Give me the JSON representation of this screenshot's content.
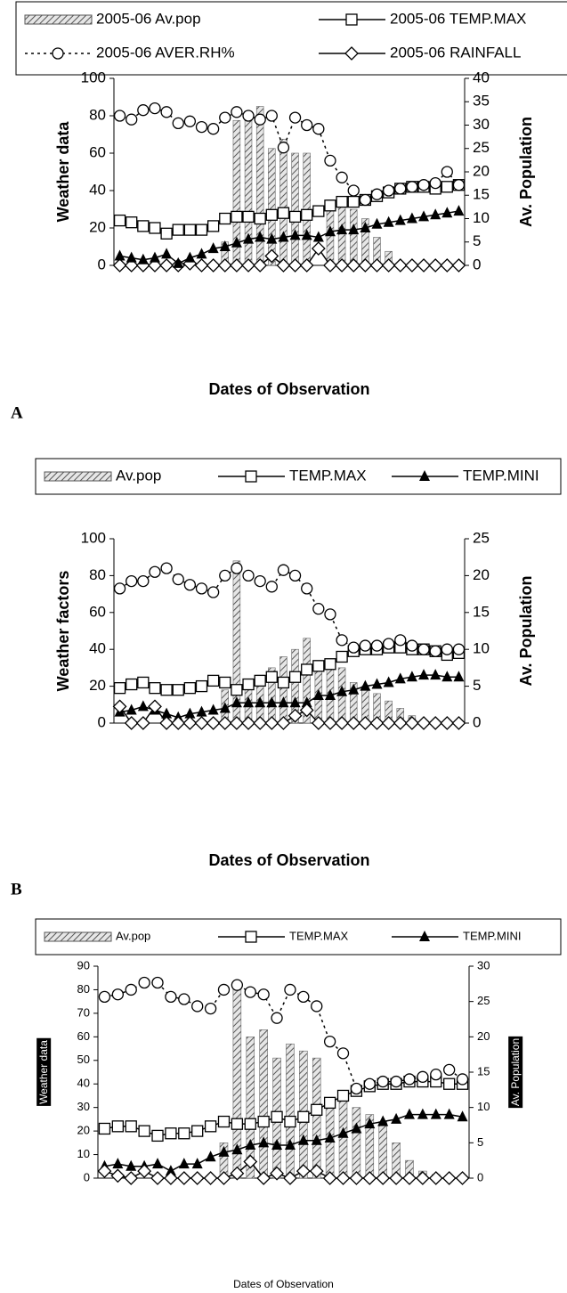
{
  "chart_data": [
    {
      "type": "combo",
      "panel_label": "A",
      "y_title": "Weather data",
      "y2_title": "Av. Population",
      "x_title": "Dates of Observation",
      "categories": [
        null,
        null,
        null,
        null,
        null,
        null,
        null,
        null,
        null,
        null,
        null,
        null,
        null,
        null,
        null,
        null,
        null,
        null,
        null,
        null,
        null,
        null,
        null,
        null,
        null,
        null,
        null,
        null,
        null,
        null
      ],
      "ylim": [
        0,
        100
      ],
      "yticks": [
        0,
        20,
        40,
        60,
        80,
        100
      ],
      "y2lim": [
        0,
        40
      ],
      "y2ticks": [
        0,
        5,
        10,
        15,
        20,
        25,
        30,
        35,
        40
      ],
      "series": [
        {
          "name": "2005-06 Av.pop",
          "kind": "bar",
          "axis": "y2",
          "color": "#9a9a9a",
          "values": [
            0,
            0,
            0,
            0,
            0,
            0,
            0,
            0,
            0,
            5,
            31,
            33,
            34,
            25,
            27,
            24,
            24,
            0,
            14,
            13,
            12,
            10,
            6,
            3,
            0,
            0,
            0,
            0,
            0,
            0
          ]
        },
        {
          "name": "2005-06 TEMP.MAX",
          "kind": "line",
          "marker": "square",
          "color": "#000000",
          "values": [
            24,
            23,
            21,
            20,
            17,
            19,
            19,
            19,
            21,
            25,
            26,
            26,
            25,
            27,
            28,
            26,
            27,
            29,
            32,
            34,
            34,
            35,
            37,
            39,
            41,
            42,
            42,
            41,
            42,
            43
          ]
        },
        {
          "name": "2005-06 AVER.RH%",
          "kind": "line",
          "marker": "circle",
          "dash": true,
          "color": "#000000",
          "values": [
            80,
            78,
            83,
            84,
            82,
            76,
            77,
            74,
            73,
            79,
            82,
            80,
            78,
            80,
            63,
            79,
            75,
            73,
            56,
            47,
            40,
            35,
            38,
            40,
            41,
            42,
            43,
            44,
            50,
            43
          ]
        },
        {
          "name": "2005-06 RAINFALL",
          "kind": "line",
          "marker": "diamond",
          "color": "#000000",
          "values": [
            0,
            0,
            0,
            0,
            0,
            0,
            1,
            0,
            0,
            0,
            0,
            0,
            0,
            5,
            0,
            0,
            0,
            9,
            0,
            0,
            0,
            0,
            0,
            0,
            0,
            0,
            0,
            0,
            0,
            0
          ]
        },
        {
          "name": null,
          "kind": "line",
          "marker": "triangle",
          "color": "#000000",
          "values": [
            5,
            4,
            3,
            4,
            6,
            1,
            4,
            6,
            9,
            10,
            12,
            14,
            15,
            14,
            15,
            16,
            16,
            15,
            18,
            19,
            19,
            20,
            22,
            23,
            24,
            25,
            26,
            27,
            28,
            29
          ]
        }
      ]
    },
    {
      "type": "combo",
      "panel_label": "B",
      "y_title": "Weather factors",
      "y2_title": "Av. Population",
      "x_title": "Dates of Observation",
      "categories": [
        null,
        null,
        null,
        null,
        null,
        null,
        null,
        null,
        null,
        null,
        null,
        null,
        null,
        null,
        null,
        null,
        null,
        null,
        null,
        null,
        null,
        null,
        null,
        null,
        null,
        null,
        null,
        null,
        null,
        null
      ],
      "ylim": [
        0,
        100
      ],
      "yticks": [
        0,
        20,
        40,
        60,
        80,
        100
      ],
      "y2lim": [
        0,
        25
      ],
      "y2ticks": [
        0,
        5,
        10,
        15,
        20,
        25
      ],
      "series": [
        {
          "name": "Av.pop",
          "kind": "bar",
          "axis": "y2",
          "color": "#9a9a9a",
          "values": [
            0,
            0,
            0,
            0,
            0,
            0,
            0,
            0,
            0,
            4.5,
            22,
            6,
            6.5,
            7.5,
            9,
            10,
            11.5,
            8.5,
            8,
            7.5,
            5.5,
            5,
            4,
            3,
            2,
            1,
            0.3,
            0.2,
            0,
            0
          ]
        },
        {
          "name": "TEMP.MAX",
          "kind": "line",
          "marker": "square",
          "color": "#000000",
          "values": [
            19,
            21,
            22,
            19,
            18,
            18,
            19,
            20,
            23,
            22,
            18,
            21,
            23,
            25,
            22,
            25,
            29,
            31,
            32,
            36,
            39,
            40,
            40,
            41,
            41,
            40,
            40,
            39,
            37,
            38
          ]
        },
        {
          "name": "TEMP.MINI",
          "kind": "line",
          "marker": "triangle",
          "color": "#000000",
          "values": [
            6,
            7,
            9,
            7,
            5,
            3,
            5,
            6,
            7,
            8,
            11,
            11,
            11,
            11,
            11,
            11,
            11,
            15,
            15,
            17,
            18,
            20,
            21,
            22,
            24,
            25,
            26,
            26,
            25,
            25
          ]
        },
        {
          "name": null,
          "kind": "line",
          "marker": "circle",
          "dash": true,
          "color": "#000000",
          "values": [
            73,
            77,
            77,
            82,
            84,
            78,
            75,
            73,
            71,
            80,
            84,
            80,
            77,
            74,
            83,
            80,
            73,
            62,
            59,
            45,
            41,
            42,
            42,
            43,
            45,
            42,
            40,
            39,
            40,
            40
          ]
        },
        {
          "name": null,
          "kind": "line",
          "marker": "diamond",
          "color": "#000000",
          "values": [
            9,
            0,
            0,
            9,
            0,
            0,
            0,
            0,
            0,
            0,
            0,
            0,
            0,
            0,
            0,
            4,
            7,
            0,
            0,
            0,
            0,
            0,
            0,
            0,
            0,
            0,
            0,
            0,
            0,
            0
          ]
        }
      ]
    },
    {
      "type": "combo",
      "panel_label": null,
      "y_title": "Weather data",
      "y2_title": "Av. Population",
      "x_title": "Dates of Observation",
      "categories": [
        null,
        null,
        null,
        null,
        null,
        null,
        null,
        null,
        null,
        null,
        null,
        null,
        null,
        null,
        null,
        null,
        null,
        null,
        null,
        null,
        null,
        null,
        null,
        null,
        null,
        null,
        null,
        null
      ],
      "ylim": [
        0,
        90
      ],
      "yticks": [
        0,
        10,
        20,
        30,
        40,
        50,
        60,
        70,
        80,
        90
      ],
      "y2lim": [
        0,
        30
      ],
      "y2ticks": [
        0,
        5,
        10,
        15,
        20,
        25,
        30
      ],
      "series": [
        {
          "name": "Av.pop",
          "kind": "bar",
          "axis": "y2",
          "color": "#9a9a9a",
          "values": [
            0,
            0,
            0,
            0,
            0,
            0,
            0,
            0,
            0,
            5,
            27,
            20,
            21,
            17,
            19,
            18,
            17,
            10,
            11,
            10,
            9,
            8,
            5,
            2.5,
            1,
            0.5,
            0,
            0
          ]
        },
        {
          "name": "TEMP.MAX",
          "kind": "line",
          "marker": "square",
          "color": "#000000",
          "values": [
            21,
            22,
            22,
            20,
            18,
            19,
            19,
            20,
            22,
            24,
            23,
            23,
            24,
            26,
            24,
            26,
            29,
            32,
            35,
            37,
            39,
            40,
            40,
            41,
            41,
            41,
            40,
            40
          ]
        },
        {
          "name": "TEMP.MINI",
          "kind": "line",
          "marker": "triangle",
          "color": "#000000",
          "values": [
            5,
            6,
            5,
            5,
            6,
            3,
            6,
            6,
            9,
            11,
            12,
            14,
            15,
            14,
            14,
            16,
            16,
            17,
            19,
            21,
            23,
            24,
            25,
            27,
            27,
            27,
            27,
            26
          ]
        },
        {
          "name": null,
          "kind": "line",
          "marker": "circle",
          "dash": true,
          "color": "#000000",
          "values": [
            77,
            78,
            80,
            83,
            83,
            77,
            76,
            73,
            72,
            80,
            82,
            79,
            78,
            68,
            80,
            77,
            73,
            58,
            53,
            38,
            40,
            41,
            41,
            42,
            43,
            44,
            46,
            42
          ]
        },
        {
          "name": null,
          "kind": "line",
          "marker": "diamond",
          "color": "#000000",
          "values": [
            3,
            1,
            0,
            3,
            0,
            0,
            0,
            0,
            0,
            0,
            2,
            7,
            0,
            2,
            0,
            3,
            3,
            0,
            0,
            0,
            0,
            0,
            0,
            0,
            0,
            0,
            0,
            0
          ]
        }
      ]
    }
  ]
}
